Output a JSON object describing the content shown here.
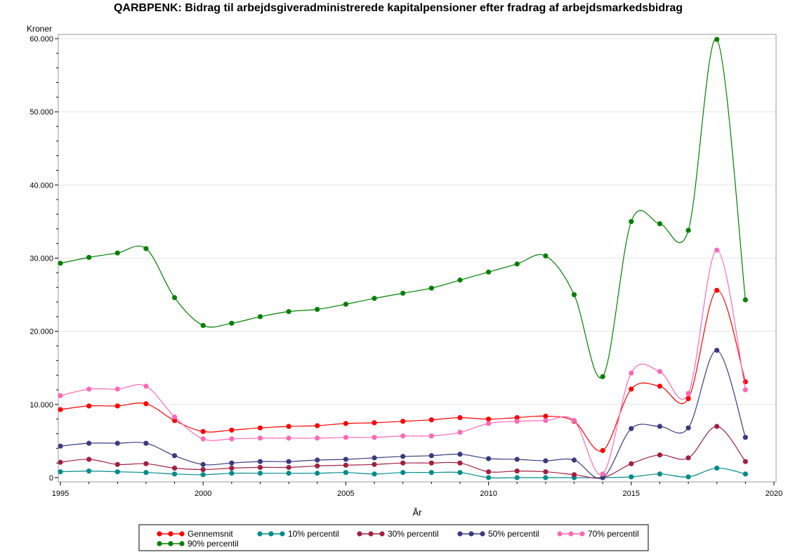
{
  "chart_data": {
    "type": "line",
    "title": "QARBPENK:  Bidrag til arbejdsgiveradministrerede kapitalpensioner efter fradrag af arbejdsmarkedsbidrag",
    "ylabel": "Kroner",
    "xlabel": "År",
    "xlim": [
      1995,
      2020
    ],
    "ylim": [
      0,
      60000
    ],
    "x_ticks": [
      1995,
      2000,
      2005,
      2010,
      2015,
      2020
    ],
    "y_ticks": [
      0,
      10000,
      20000,
      30000,
      40000,
      50000,
      60000
    ],
    "y_tick_labels": [
      "0",
      "10.000",
      "20.000",
      "30.000",
      "40.000",
      "50.000",
      "60.000"
    ],
    "grid": "horizontal",
    "legend_position": "bottom",
    "x": [
      1995,
      1996,
      1997,
      1998,
      1999,
      2000,
      2001,
      2002,
      2003,
      2004,
      2005,
      2006,
      2007,
      2008,
      2009,
      2010,
      2011,
      2012,
      2013,
      2014,
      2015,
      2016,
      2017,
      2018,
      2019
    ],
    "series": [
      {
        "name": "Gennemsnit",
        "color": "#ff0000",
        "values": [
          9300,
          9800,
          9800,
          10100,
          7800,
          6300,
          6500,
          6800,
          7000,
          7100,
          7400,
          7500,
          7700,
          7900,
          8200,
          8000,
          8200,
          8400,
          7700,
          3700,
          12100,
          12500,
          10800,
          25600,
          13100
        ]
      },
      {
        "name": "10% percentil",
        "color": "#008b8b",
        "values": [
          800,
          900,
          800,
          700,
          500,
          400,
          600,
          600,
          600,
          600,
          700,
          500,
          700,
          700,
          700,
          0,
          0,
          0,
          0,
          0,
          100,
          500,
          100,
          1300,
          500
        ]
      },
      {
        "name": "30% percentil",
        "color": "#a02040",
        "values": [
          2100,
          2500,
          1800,
          1900,
          1300,
          1100,
          1300,
          1400,
          1400,
          1600,
          1700,
          1800,
          2000,
          2000,
          2000,
          800,
          900,
          800,
          400,
          0,
          1900,
          3100,
          2700,
          7000,
          2200
        ]
      },
      {
        "name": "50% percentil",
        "color": "#3a3a80",
        "values": [
          4300,
          4700,
          4700,
          4700,
          3000,
          1800,
          2000,
          2200,
          2200,
          2400,
          2500,
          2700,
          2900,
          3000,
          3200,
          2600,
          2500,
          2300,
          2400,
          0,
          6700,
          7000,
          6800,
          17400,
          5500
        ]
      },
      {
        "name": "70% percentil",
        "color": "#ff69b4",
        "values": [
          11200,
          12100,
          12100,
          12500,
          8300,
          5300,
          5300,
          5400,
          5400,
          5400,
          5500,
          5500,
          5700,
          5700,
          6200,
          7400,
          7700,
          7800,
          7800,
          500,
          14300,
          14500,
          11500,
          31100,
          12000
        ]
      },
      {
        "name": "90% percentil",
        "color": "#008000",
        "values": [
          29300,
          30100,
          30700,
          31300,
          24600,
          20800,
          21100,
          22000,
          22700,
          23000,
          23700,
          24500,
          25200,
          25900,
          27000,
          28100,
          29200,
          30300,
          25000,
          13800,
          35000,
          34700,
          33800,
          59900,
          24300
        ]
      }
    ]
  }
}
